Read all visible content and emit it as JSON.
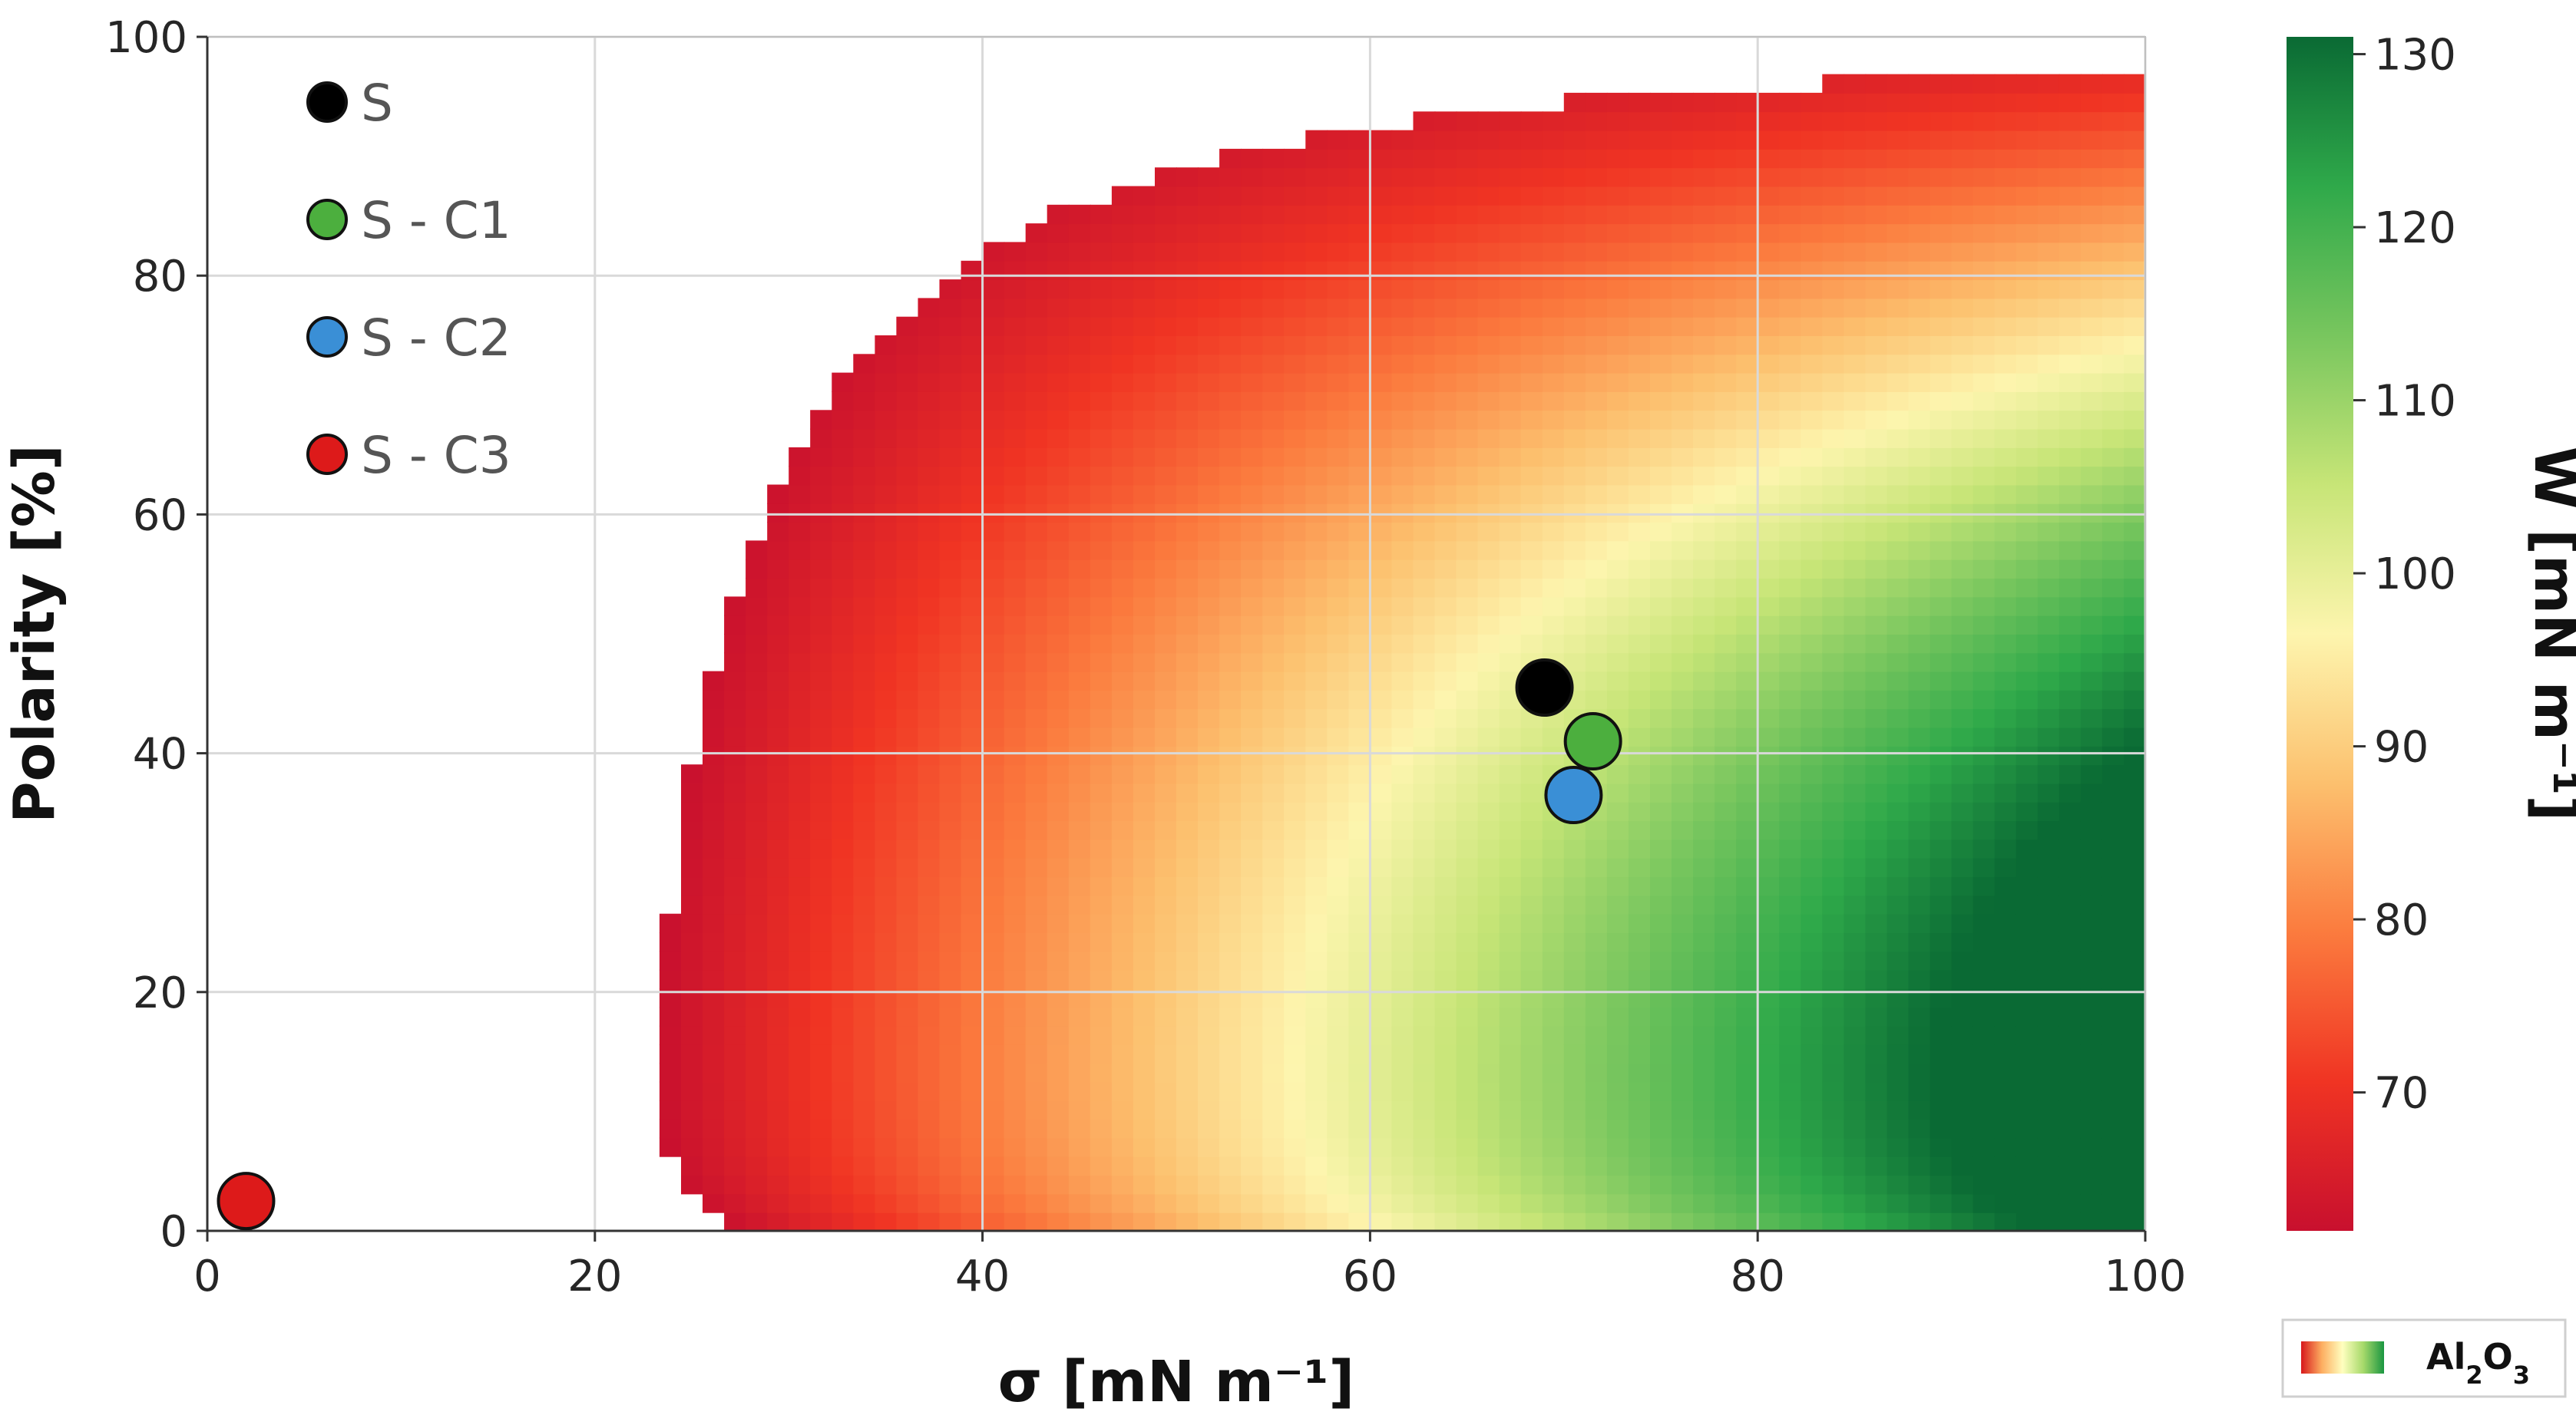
{
  "chart_data": {
    "type": "heatmap",
    "title": "",
    "xlabel": "σ [mN m⁻¹]",
    "ylabel": "Polarity [%]",
    "xlim": [
      0,
      100
    ],
    "ylim": [
      0,
      100
    ],
    "xticks": [
      "0",
      "20",
      "40",
      "60",
      "80",
      "100"
    ],
    "yticks": [
      "0",
      "20",
      "40",
      "60",
      "80",
      "100"
    ],
    "grid": true,
    "colorbar": {
      "label": "W [mN m⁻¹]",
      "ticks": [
        "70",
        "80",
        "90",
        "100",
        "110",
        "120",
        "130"
      ],
      "range": [
        62,
        131
      ],
      "colors": [
        "#c8102e",
        "#f03423",
        "#fb7b3e",
        "#fcc06e",
        "#fdf5ae",
        "#c7e577",
        "#78c65e",
        "#2fa94a",
        "#0a6a34"
      ]
    },
    "legend": {
      "placement": "top-left",
      "entries": [
        {
          "name": "S",
          "color": "#000000"
        },
        {
          "name": "S - C1",
          "color": "#4caf3e"
        },
        {
          "name": "S - C2",
          "color": "#3a8fd6"
        },
        {
          "name": "S - C3",
          "color": "#dd1a1a"
        }
      ]
    },
    "series": [
      {
        "name": "S",
        "points": [
          {
            "x": 69.0,
            "y": 45.5
          }
        ]
      },
      {
        "name": "S - C1",
        "points": [
          {
            "x": 71.5,
            "y": 41.0
          }
        ]
      },
      {
        "name": "S - C2",
        "points": [
          {
            "x": 70.5,
            "y": 36.5
          }
        ]
      },
      {
        "name": "S - C3",
        "points": [
          {
            "x": 2.0,
            "y": 2.5
          }
        ]
      }
    ],
    "badge": {
      "label": "Al2O3",
      "colors": [
        "#d7191c",
        "#fdae61",
        "#ffffbf",
        "#a6d96a",
        "#1a9641"
      ]
    }
  }
}
